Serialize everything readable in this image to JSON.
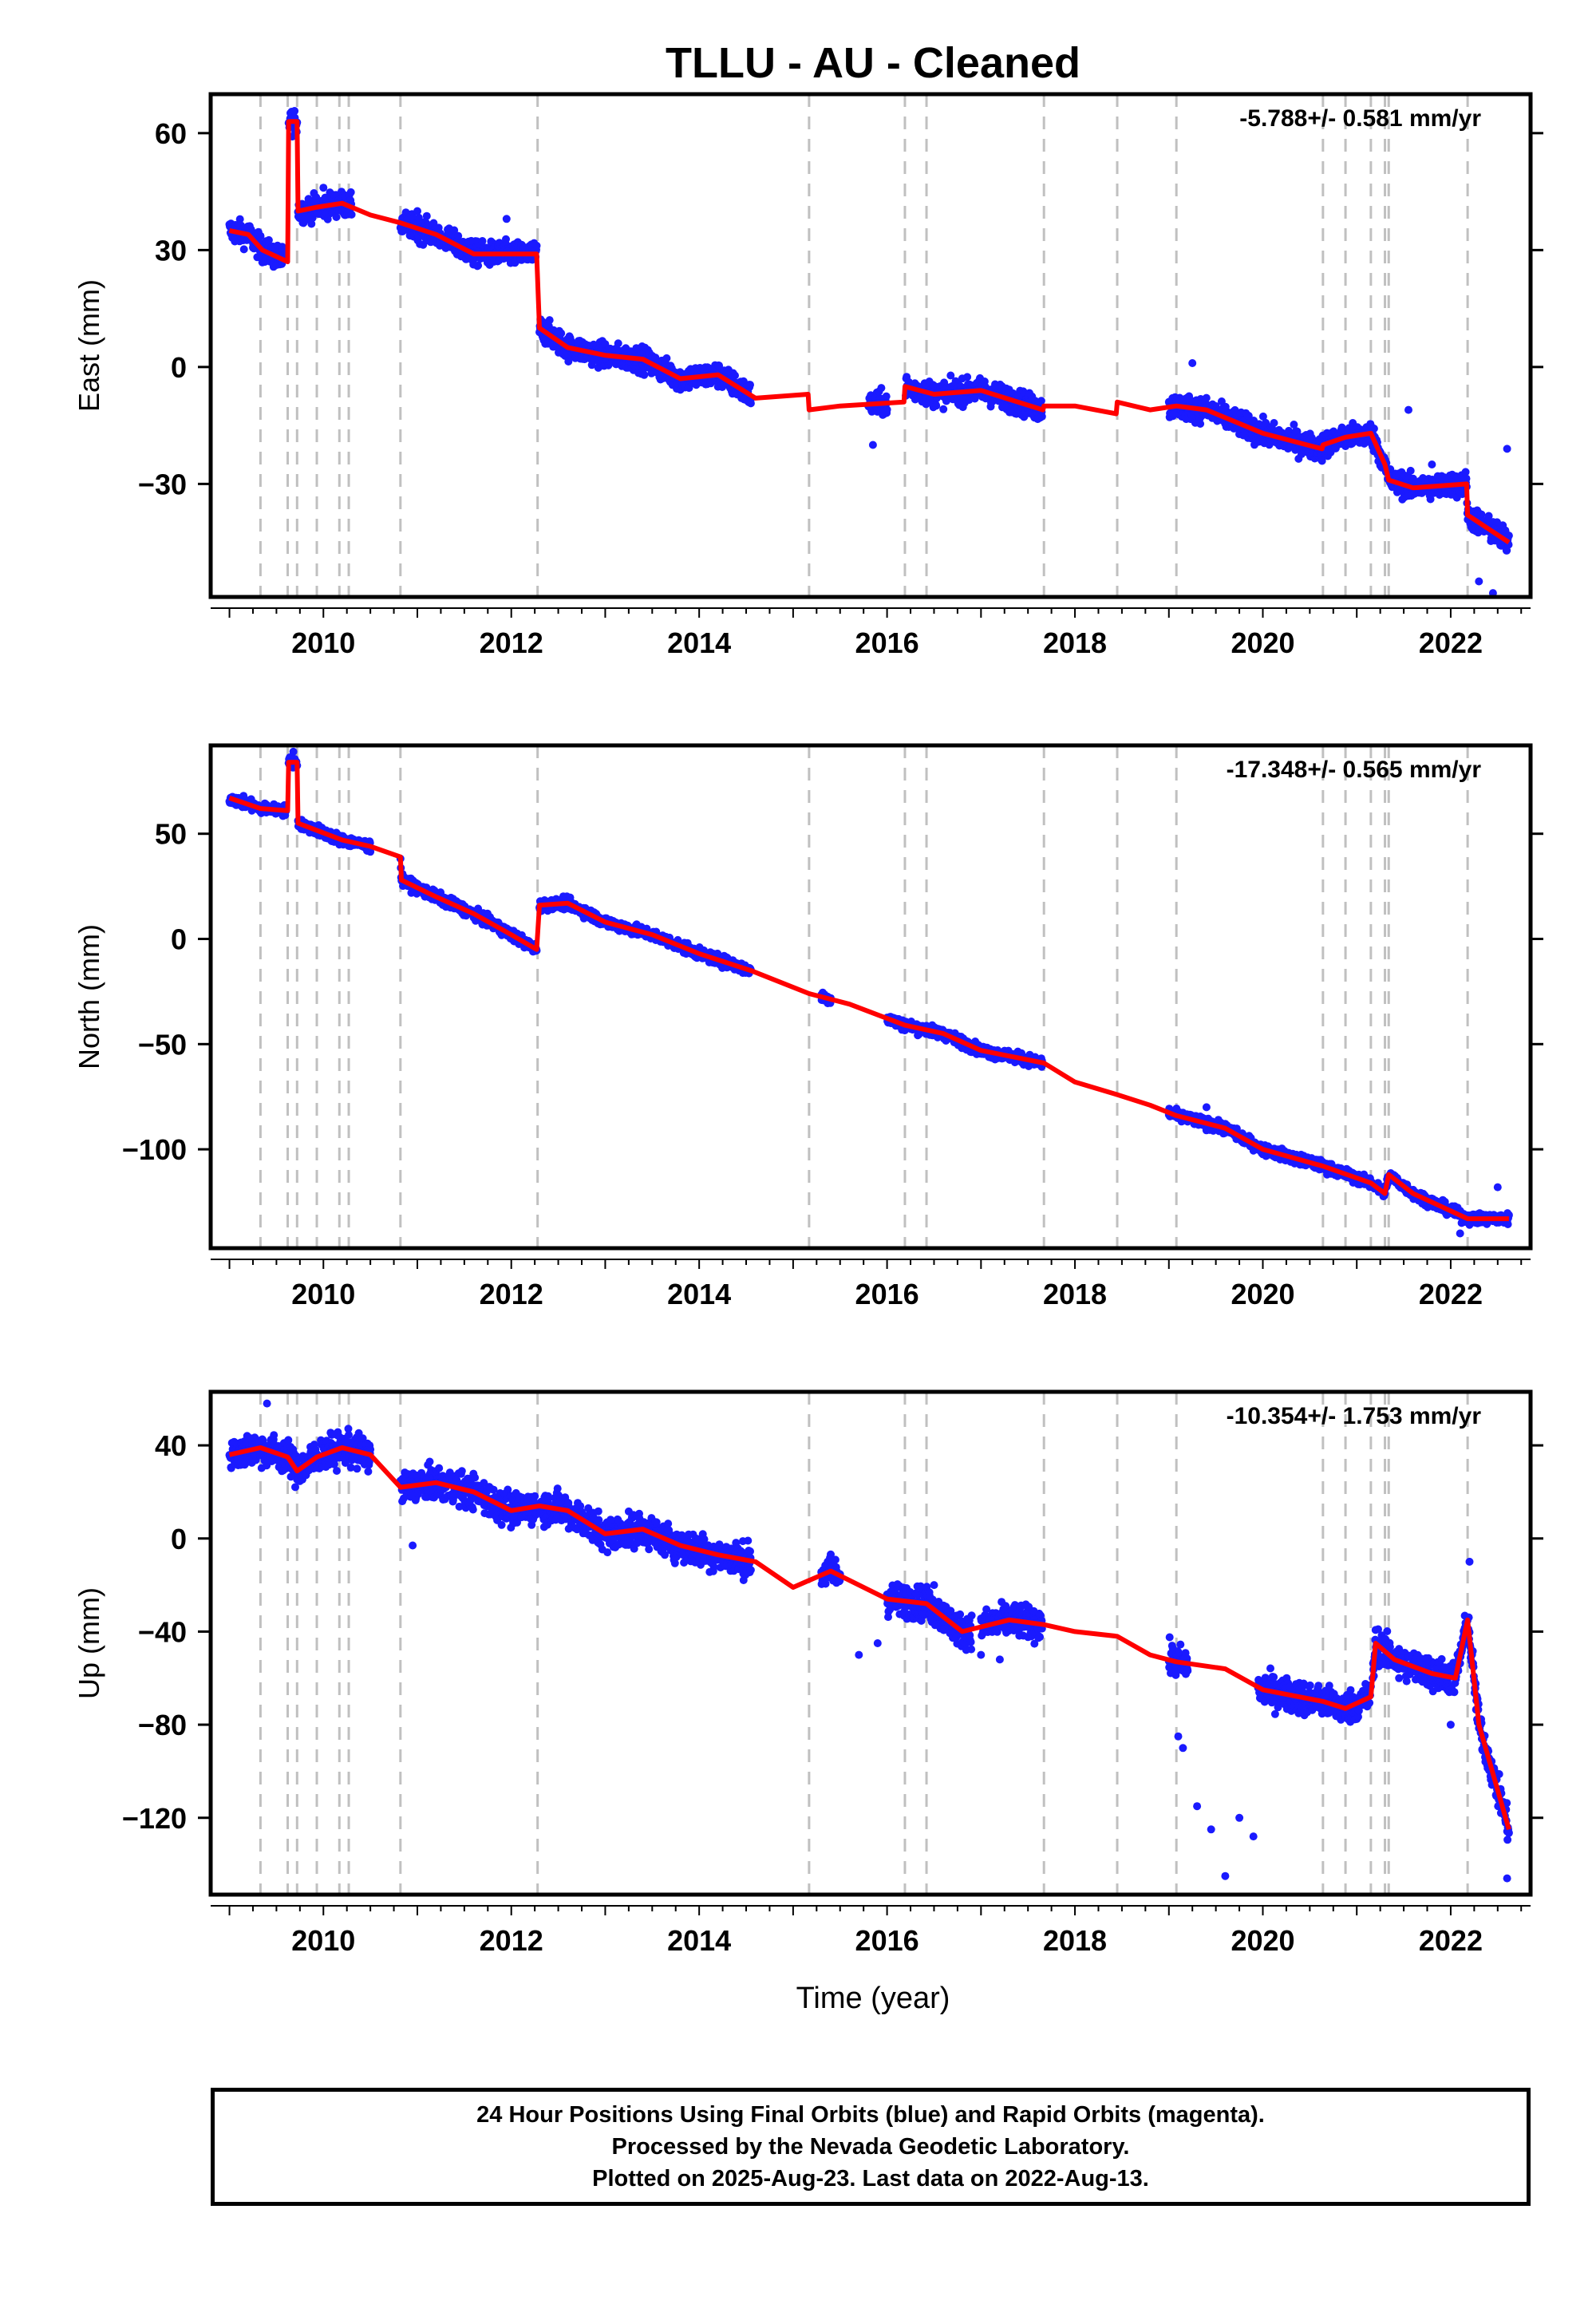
{
  "title": "TLLU  - AU - Cleaned",
  "xlabel": "Time (year)",
  "colors": {
    "data": "#1a1aff",
    "model": "#ff0000",
    "offsets": "#c0c0c0",
    "frame": "#000000"
  },
  "x_ticks": [
    "2010",
    "2012",
    "2014",
    "2016",
    "2018",
    "2020",
    "2022"
  ],
  "offset_epochs": [
    2009.33,
    2009.62,
    2009.72,
    2009.93,
    2010.17,
    2010.27,
    2010.82,
    2012.28,
    2015.17,
    2016.19,
    2016.42,
    2017.67,
    2018.45,
    2019.08,
    2020.64,
    2020.88,
    2021.15,
    2021.3,
    2021.34,
    2022.18
  ],
  "footer": {
    "line1": "24 Hour Positions Using Final Orbits (blue) and Rapid Orbits (magenta).",
    "line2": "Processed by the Nevada Geodetic Laboratory.",
    "line3": "Plotted on 2025-Aug-23. Last data on 2022-Aug-13."
  },
  "chart_data": [
    {
      "type": "scatter",
      "ylabel": "East (mm)",
      "rate": "-5.788+/- 0.581 mm/yr",
      "xlim": [
        2008.8,
        2022.85
      ],
      "ylim": [
        -59,
        70
      ],
      "y_ticks": [
        "60",
        "30",
        "0",
        "−30"
      ],
      "y_tick_values": [
        60,
        30,
        0,
        -30
      ],
      "noise": 2.2,
      "trend": [
        [
          2009.0,
          35
        ],
        [
          2009.2,
          34
        ],
        [
          2009.35,
          30
        ],
        [
          2009.62,
          27
        ],
        [
          2009.63,
          63
        ],
        [
          2009.72,
          63
        ],
        [
          2009.73,
          40
        ],
        [
          2009.93,
          41
        ],
        [
          2010.2,
          42
        ],
        [
          2010.5,
          39
        ],
        [
          2010.82,
          37
        ],
        [
          2011.2,
          34
        ],
        [
          2011.6,
          29
        ],
        [
          2012.0,
          29
        ],
        [
          2012.27,
          29
        ],
        [
          2012.3,
          10
        ],
        [
          2012.6,
          5
        ],
        [
          2013.0,
          3
        ],
        [
          2013.4,
          2
        ],
        [
          2013.8,
          -3
        ],
        [
          2014.2,
          -2
        ],
        [
          2014.6,
          -8
        ],
        [
          2015.16,
          -7
        ],
        [
          2015.17,
          -11
        ],
        [
          2015.5,
          -10
        ],
        [
          2016.18,
          -9
        ],
        [
          2016.19,
          -5
        ],
        [
          2016.5,
          -7
        ],
        [
          2017.0,
          -6
        ],
        [
          2017.66,
          -11
        ],
        [
          2017.67,
          -10
        ],
        [
          2018.0,
          -10
        ],
        [
          2018.44,
          -12
        ],
        [
          2018.45,
          -9
        ],
        [
          2018.8,
          -11
        ],
        [
          2019.08,
          -10
        ],
        [
          2019.4,
          -11
        ],
        [
          2020.0,
          -17
        ],
        [
          2020.63,
          -21
        ],
        [
          2020.64,
          -20
        ],
        [
          2020.88,
          -18
        ],
        [
          2021.15,
          -17
        ],
        [
          2021.3,
          -25
        ],
        [
          2021.34,
          -29
        ],
        [
          2021.6,
          -31
        ],
        [
          2022.17,
          -30
        ],
        [
          2022.18,
          -38
        ],
        [
          2022.62,
          -45
        ]
      ],
      "data_segments": [
        [
          2009.0,
          2009.6
        ],
        [
          2009.63,
          2009.72
        ],
        [
          2009.73,
          2010.3
        ],
        [
          2010.82,
          2011.25
        ],
        [
          2011.3,
          2012.27
        ],
        [
          2012.3,
          2014.55
        ],
        [
          2015.8,
          2016.0
        ],
        [
          2016.2,
          2017.65
        ],
        [
          2019.0,
          2021.33
        ],
        [
          2021.35,
          2022.62
        ]
      ],
      "outliers": [
        [
          2010.0,
          46
        ],
        [
          2011.0,
          40
        ],
        [
          2011.95,
          38
        ],
        [
          2015.85,
          -20
        ],
        [
          2019.25,
          1
        ],
        [
          2021.55,
          -11
        ],
        [
          2021.8,
          -25
        ],
        [
          2022.3,
          -55
        ],
        [
          2022.45,
          -58
        ],
        [
          2022.6,
          -21
        ]
      ]
    },
    {
      "type": "scatter",
      "ylabel": "North (mm)",
      "rate": "-17.348+/- 0.565 mm/yr",
      "xlim": [
        2008.8,
        2022.85
      ],
      "ylim": [
        -147,
        92
      ],
      "y_ticks": [
        "50",
        "0",
        "−50",
        "−100"
      ],
      "y_tick_values": [
        50,
        0,
        -50,
        -100
      ],
      "noise": 1.8,
      "trend": [
        [
          2009.0,
          67
        ],
        [
          2009.33,
          62
        ],
        [
          2009.62,
          61
        ],
        [
          2009.63,
          84
        ],
        [
          2009.72,
          84
        ],
        [
          2009.73,
          55
        ],
        [
          2010.2,
          47
        ],
        [
          2010.5,
          44
        ],
        [
          2010.82,
          39
        ],
        [
          2010.83,
          28
        ],
        [
          2011.2,
          20
        ],
        [
          2011.6,
          12
        ],
        [
          2012.0,
          2
        ],
        [
          2012.27,
          -5
        ],
        [
          2012.3,
          16
        ],
        [
          2012.6,
          17
        ],
        [
          2013.0,
          8
        ],
        [
          2013.5,
          2
        ],
        [
          2014.0,
          -7
        ],
        [
          2014.55,
          -15
        ],
        [
          2015.17,
          -26
        ],
        [
          2015.6,
          -31
        ],
        [
          2016.19,
          -41
        ],
        [
          2016.6,
          -45
        ],
        [
          2017.0,
          -53
        ],
        [
          2017.67,
          -59
        ],
        [
          2018.0,
          -68
        ],
        [
          2018.45,
          -74
        ],
        [
          2018.8,
          -79
        ],
        [
          2019.08,
          -84
        ],
        [
          2019.6,
          -90
        ],
        [
          2020.0,
          -100
        ],
        [
          2020.64,
          -108
        ],
        [
          2021.15,
          -116
        ],
        [
          2021.3,
          -121
        ],
        [
          2021.34,
          -112
        ],
        [
          2021.6,
          -121
        ],
        [
          2022.18,
          -133
        ],
        [
          2022.62,
          -133
        ]
      ],
      "data_segments": [
        [
          2009.0,
          2009.6
        ],
        [
          2009.63,
          2009.72
        ],
        [
          2009.73,
          2010.5
        ],
        [
          2010.82,
          2012.27
        ],
        [
          2012.3,
          2014.55
        ],
        [
          2015.3,
          2015.4
        ],
        [
          2016.0,
          2017.65
        ],
        [
          2019.0,
          2021.33
        ],
        [
          2021.35,
          2022.62
        ]
      ],
      "outliers": [
        [
          2009.68,
          89
        ],
        [
          2019.4,
          -80
        ],
        [
          2022.5,
          -118
        ],
        [
          2022.1,
          -140
        ]
      ]
    },
    {
      "type": "scatter",
      "ylabel": "Up (mm)",
      "rate": "-10.354+/- 1.753 mm/yr",
      "xlim": [
        2008.8,
        2022.85
      ],
      "ylim": [
        -153,
        63
      ],
      "y_ticks": [
        "40",
        "0",
        "−40",
        "−80",
        "−120"
      ],
      "y_tick_values": [
        40,
        0,
        -40,
        -80,
        -120
      ],
      "noise": 5,
      "trend": [
        [
          2009.0,
          36
        ],
        [
          2009.33,
          39
        ],
        [
          2009.62,
          35
        ],
        [
          2009.72,
          29
        ],
        [
          2009.93,
          35
        ],
        [
          2010.2,
          39
        ],
        [
          2010.5,
          36
        ],
        [
          2010.82,
          22
        ],
        [
          2011.2,
          24
        ],
        [
          2011.6,
          20
        ],
        [
          2012.0,
          12
        ],
        [
          2012.3,
          14
        ],
        [
          2012.6,
          12
        ],
        [
          2013.0,
          2
        ],
        [
          2013.4,
          4
        ],
        [
          2013.8,
          -3
        ],
        [
          2014.2,
          -7
        ],
        [
          2014.6,
          -10
        ],
        [
          2015.0,
          -21
        ],
        [
          2015.17,
          -18
        ],
        [
          2015.4,
          -14
        ],
        [
          2016.0,
          -26
        ],
        [
          2016.42,
          -28
        ],
        [
          2016.8,
          -40
        ],
        [
          2017.3,
          -35
        ],
        [
          2017.67,
          -37
        ],
        [
          2018.0,
          -40
        ],
        [
          2018.45,
          -42
        ],
        [
          2018.8,
          -50
        ],
        [
          2019.08,
          -53
        ],
        [
          2019.6,
          -56
        ],
        [
          2020.0,
          -65
        ],
        [
          2020.64,
          -70
        ],
        [
          2020.88,
          -73
        ],
        [
          2021.15,
          -68
        ],
        [
          2021.2,
          -45
        ],
        [
          2021.4,
          -52
        ],
        [
          2021.8,
          -58
        ],
        [
          2022.05,
          -60
        ],
        [
          2022.18,
          -35
        ],
        [
          2022.3,
          -80
        ],
        [
          2022.62,
          -125
        ]
      ],
      "data_segments": [
        [
          2009.0,
          2010.5
        ],
        [
          2010.82,
          2012.27
        ],
        [
          2012.3,
          2014.55
        ],
        [
          2015.3,
          2015.5
        ],
        [
          2016.0,
          2016.9
        ],
        [
          2017.0,
          2017.65
        ],
        [
          2019.0,
          2019.2
        ],
        [
          2019.95,
          2021.15
        ],
        [
          2021.17,
          2021.45
        ],
        [
          2021.45,
          2022.15
        ],
        [
          2022.15,
          2022.62
        ]
      ],
      "outliers": [
        [
          2009.4,
          58
        ],
        [
          2010.95,
          -3
        ],
        [
          2015.7,
          -50
        ],
        [
          2015.9,
          -45
        ],
        [
          2016.5,
          -20
        ],
        [
          2017.0,
          -50
        ],
        [
          2017.2,
          -52
        ],
        [
          2019.1,
          -85
        ],
        [
          2019.15,
          -90
        ],
        [
          2019.3,
          -115
        ],
        [
          2019.45,
          -125
        ],
        [
          2019.6,
          -145
        ],
        [
          2019.75,
          -120
        ],
        [
          2019.9,
          -128
        ],
        [
          2021.45,
          -60
        ],
        [
          2022.0,
          -80
        ],
        [
          2022.2,
          -10
        ],
        [
          2022.6,
          -146
        ]
      ]
    }
  ]
}
